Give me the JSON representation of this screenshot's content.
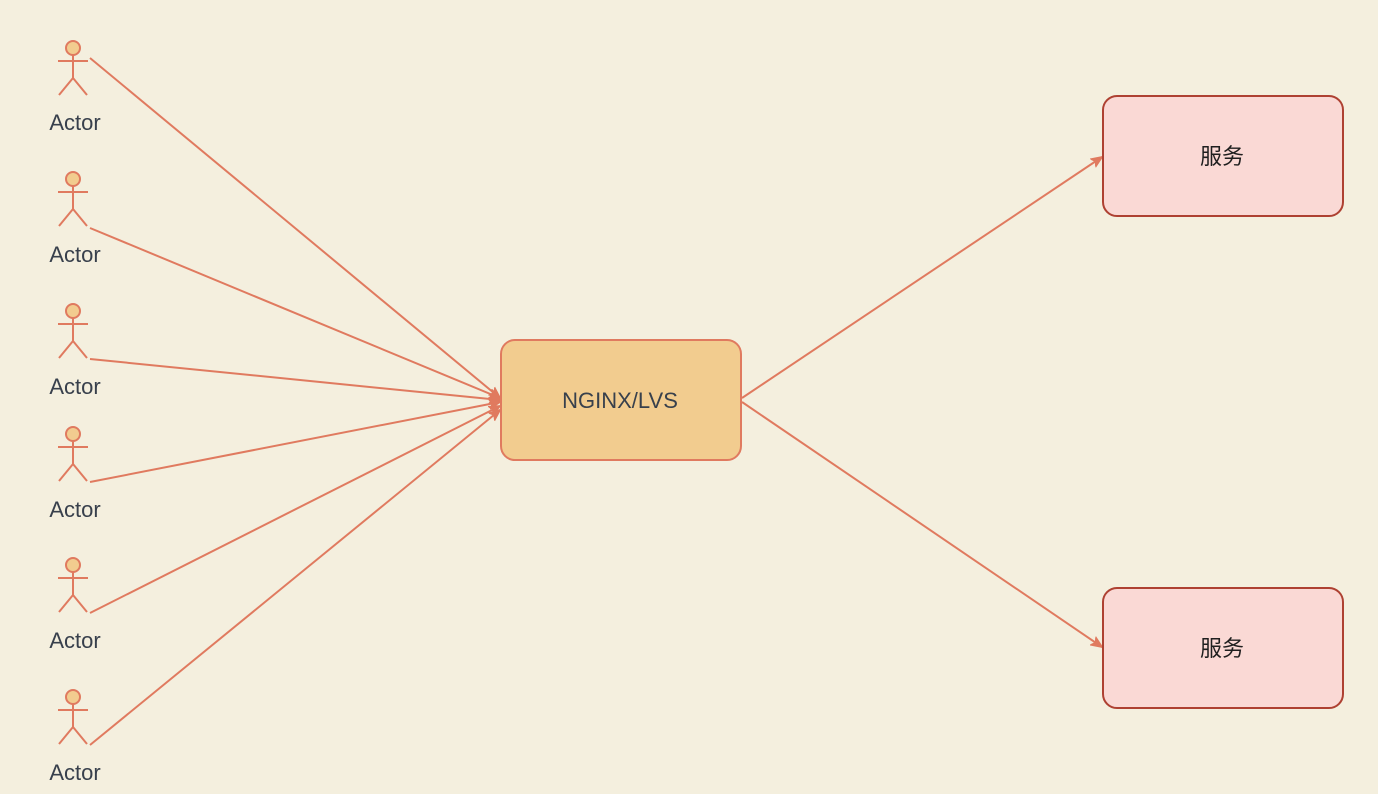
{
  "actors": [
    {
      "label": "Actor"
    },
    {
      "label": "Actor"
    },
    {
      "label": "Actor"
    },
    {
      "label": "Actor"
    },
    {
      "label": "Actor"
    },
    {
      "label": "Actor"
    }
  ],
  "load_balancer": {
    "label": "NGINX/LVS"
  },
  "services": [
    {
      "label": "服务"
    },
    {
      "label": "服务"
    }
  ],
  "colors": {
    "background": "#F4EFDE",
    "edge": "#E07A5F",
    "actor_fill": "#F2CC8F",
    "actor_stroke": "#E07A5F",
    "lb_fill": "#F2CC8F",
    "lb_stroke": "#E07A5F",
    "service_fill": "#FAD9D5",
    "service_stroke": "#AE4132",
    "label_text": "#38404C",
    "service_text": "#1F1F1F"
  }
}
